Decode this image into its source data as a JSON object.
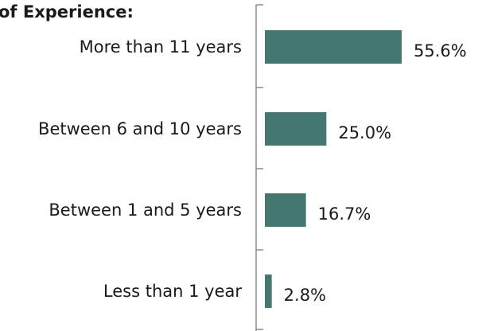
{
  "chart_data": {
    "type": "bar",
    "orientation": "horizontal",
    "title": "of Experience:",
    "categories": [
      "More than 11 years",
      "Between 6 and 10 years",
      "Between 1 and 5 years",
      "Less than 1 year"
    ],
    "values": [
      55.6,
      25.0,
      16.7,
      2.8
    ],
    "value_labels": [
      "55.6%",
      "25.0%",
      "16.7%",
      "2.8%"
    ],
    "bar_color": "#44776F",
    "xlim": [
      0,
      60
    ],
    "grid": false
  }
}
